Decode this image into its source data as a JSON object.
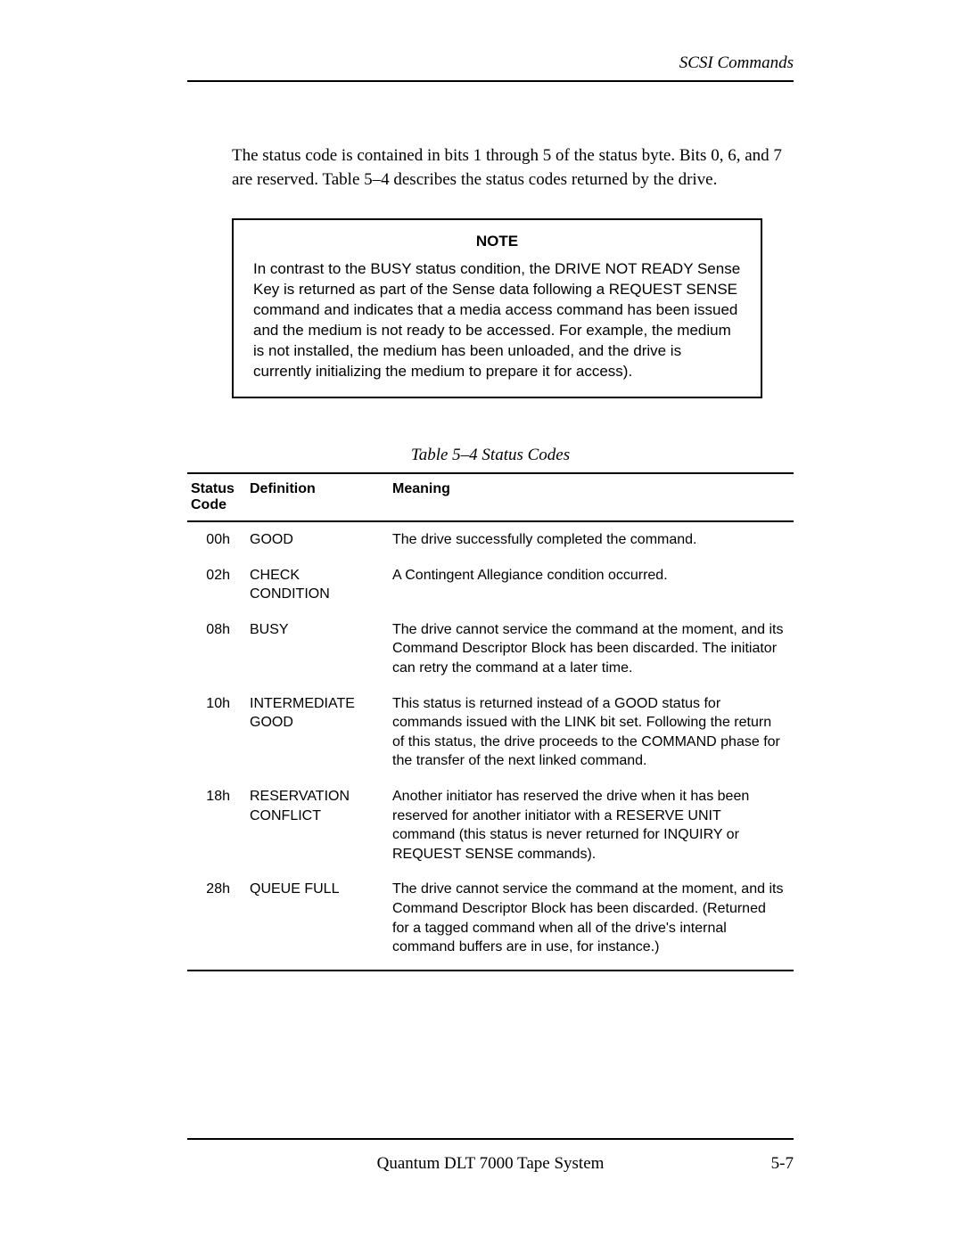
{
  "header": {
    "section_title": "SCSI Commands"
  },
  "intro_paragraph": "The status code is contained in bits 1 through 5 of the status byte. Bits 0, 6, and 7 are reserved. Table 5–4 describes the status codes returned by the drive.",
  "note": {
    "heading": "NOTE",
    "text": "In contrast to the BUSY status condition, the DRIVE NOT READY Sense Key is returned as part of the Sense data following a REQUEST SENSE command and indicates that a media access command has been issued and the medium is not ready to be accessed. For example, the medium is not installed, the medium has been unloaded, and the drive is currently initializing the medium to prepare it for access)."
  },
  "table": {
    "caption": "Table 5–4  Status Codes",
    "columns": {
      "code": "Status Code",
      "definition": "Definition",
      "meaning": "Meaning"
    },
    "rows": [
      {
        "code": "00h",
        "definition": "GOOD",
        "meaning": "The drive successfully completed the command."
      },
      {
        "code": "02h",
        "definition": "CHECK CONDITION",
        "meaning": "A Contingent Allegiance condition occurred."
      },
      {
        "code": "08h",
        "definition": "BUSY",
        "meaning": "The drive cannot service the command at the moment, and its Command Descriptor Block has been discarded. The initiator can retry the command at a later time."
      },
      {
        "code": "10h",
        "definition": "INTERMEDIATE GOOD",
        "meaning": "This status is returned instead of a GOOD status for commands issued with the LINK bit set. Following the return of this status, the drive proceeds to the COMMAND phase for the transfer of the next linked command."
      },
      {
        "code": "18h",
        "definition": "RESERVATION CONFLICT",
        "meaning": "Another initiator has reserved the drive when it has been reserved for another initiator with a RESERVE UNIT command (this status is never returned for INQUIRY or REQUEST SENSE commands)."
      },
      {
        "code": "28h",
        "definition": "QUEUE FULL",
        "meaning": "The drive cannot service the command at the moment, and its Command Descriptor Block has been discarded. (Returned for a tagged command when all of the drive's internal command buffers are in use, for instance.)"
      }
    ]
  },
  "footer": {
    "title": "Quantum DLT 7000 Tape System",
    "page_number": "5-7"
  }
}
